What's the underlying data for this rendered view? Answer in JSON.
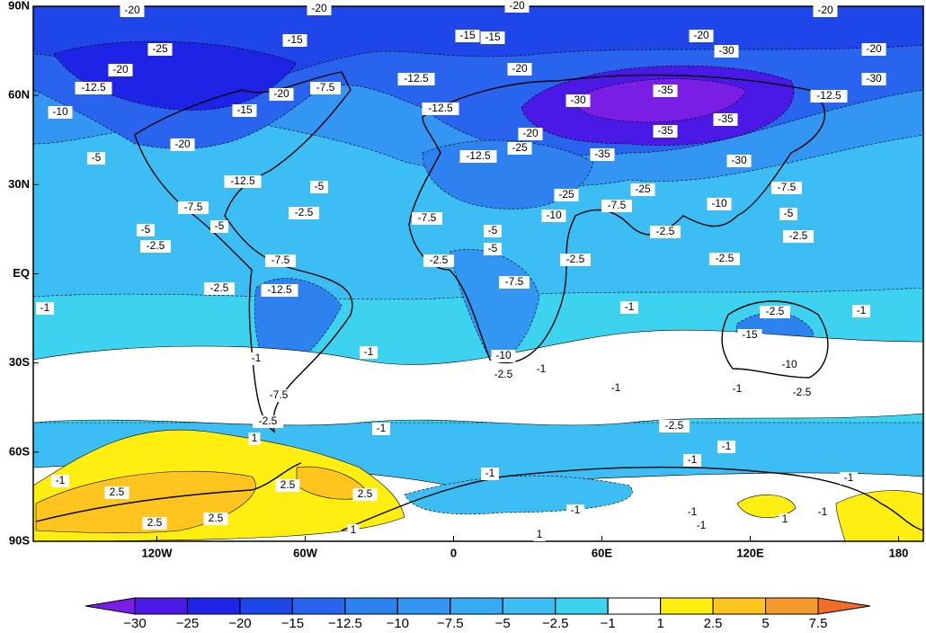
{
  "map": {
    "xlim": [
      -170,
      190
    ],
    "ylim": [
      -90,
      90
    ],
    "xticks": [
      {
        "value": -120,
        "label": "120W"
      },
      {
        "value": -60,
        "label": "60W"
      },
      0,
      {
        "value": 60,
        "label": "60E"
      },
      {
        "value": 120,
        "label": "120E"
      },
      180
    ],
    "yticks": [
      {
        "value": 90,
        "label": "90N"
      },
      {
        "value": 60,
        "label": "60N"
      },
      {
        "value": 30,
        "label": "30N"
      },
      {
        "value": 0,
        "label": "EQ"
      },
      {
        "value": -30,
        "label": "30S"
      },
      {
        "value": -60,
        "label": "60S"
      },
      {
        "value": -90,
        "label": "90S"
      }
    ],
    "contour_labels": [
      "-20",
      "-20",
      "-20",
      "-20",
      "-25",
      "-15",
      "-15",
      "-15",
      "-20",
      "-30",
      "-20",
      "-20",
      "-12.5",
      "-10",
      "-20",
      "-7.5",
      "-12.5",
      "-20",
      "-30",
      "-35",
      "-12.5",
      "-30",
      "-15",
      "-12.5",
      "-35",
      "-35",
      "-20",
      "-5",
      "-20",
      "-12.5",
      "-25",
      "-35",
      "-30",
      "-12.5",
      "-5",
      "-25",
      "-25",
      "-7.5",
      "-7.5",
      "-2.5",
      "-7.5",
      "-10",
      "-7.5",
      "-10",
      "-5",
      "-5",
      "-5",
      "-2.5",
      "-5",
      "-2.5",
      "-2.5",
      "-5",
      "-2.5",
      "-7.5",
      "-2.5",
      "-2.5",
      "-2.5",
      "-12.5",
      "-7.5",
      "-1",
      "-1",
      "-2.5",
      "-1",
      "-15",
      "-10",
      "-1",
      "-1",
      "-2.5",
      "-1",
      "-10",
      "-1",
      "-1",
      "-2.5",
      "-7.5",
      "-2.5",
      "-1",
      "-2.5",
      "1",
      "-1",
      "-1",
      "-1",
      "-1",
      "-1",
      "2.5",
      "2.5",
      "2.5",
      "2.5",
      "2.5",
      "-1",
      "-1",
      "-1",
      "-1",
      "1",
      "1",
      "1"
    ],
    "colorbar": {
      "levels": [
        {
          "value": -30,
          "label": "−30"
        },
        {
          "value": -25,
          "label": "−25"
        },
        {
          "value": -20,
          "label": "−20"
        },
        {
          "value": -15,
          "label": "−15"
        },
        {
          "value": -12.5,
          "label": "−12.5"
        },
        {
          "value": -10,
          "label": "−10"
        },
        {
          "value": -7.5,
          "label": "−7.5"
        },
        {
          "value": -5,
          "label": "−5"
        },
        {
          "value": -2.5,
          "label": "−2.5"
        },
        {
          "value": -1,
          "label": "−1"
        },
        1,
        2.5,
        5,
        7.5
      ],
      "colors": [
        "#7a1ee6",
        "#4b19e6",
        "#1e23e6",
        "#1e46e8",
        "#2864ee",
        "#2d82f0",
        "#3296f2",
        "#37aaf4",
        "#3cbef5",
        "#3cd2f0",
        "#ffffff",
        "#ffee10",
        "#ffc41e",
        "#f59a2d",
        "#f06e28"
      ]
    }
  }
}
